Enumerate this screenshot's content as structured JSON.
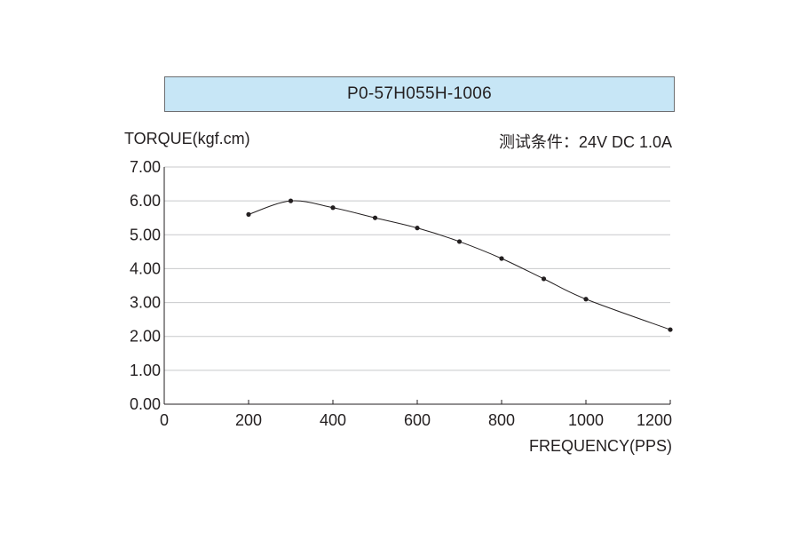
{
  "chart_data": {
    "type": "line",
    "title": "P0-57H055H-1006",
    "condition": "测试条件：24V DC  1.0A",
    "ylabel": "TORQUE(kgf.cm)",
    "xlabel": "FREQUENCY(PPS)",
    "xlim": [
      0,
      1200
    ],
    "ylim": [
      0,
      7
    ],
    "x_ticks": [
      0,
      200,
      400,
      600,
      800,
      1000,
      1200
    ],
    "x_tick_labels": [
      "0",
      "200",
      "400",
      "600",
      "800",
      "1000",
      "1200"
    ],
    "y_ticks": [
      0,
      1,
      2,
      3,
      4,
      5,
      6,
      7
    ],
    "y_tick_labels": [
      "0.00",
      "1.00",
      "2.00",
      "3.00",
      "4.00",
      "5.00",
      "6.00",
      "7.00"
    ],
    "grid": true,
    "line_color": "#231f20",
    "grid_color": "#c8c9cb",
    "series": [
      {
        "x": [
          200,
          300,
          400,
          500,
          600,
          700,
          800,
          900,
          1000,
          1200
        ],
        "y": [
          5.6,
          6.0,
          5.8,
          5.5,
          5.2,
          4.8,
          4.3,
          3.7,
          3.1,
          2.2
        ]
      }
    ]
  }
}
